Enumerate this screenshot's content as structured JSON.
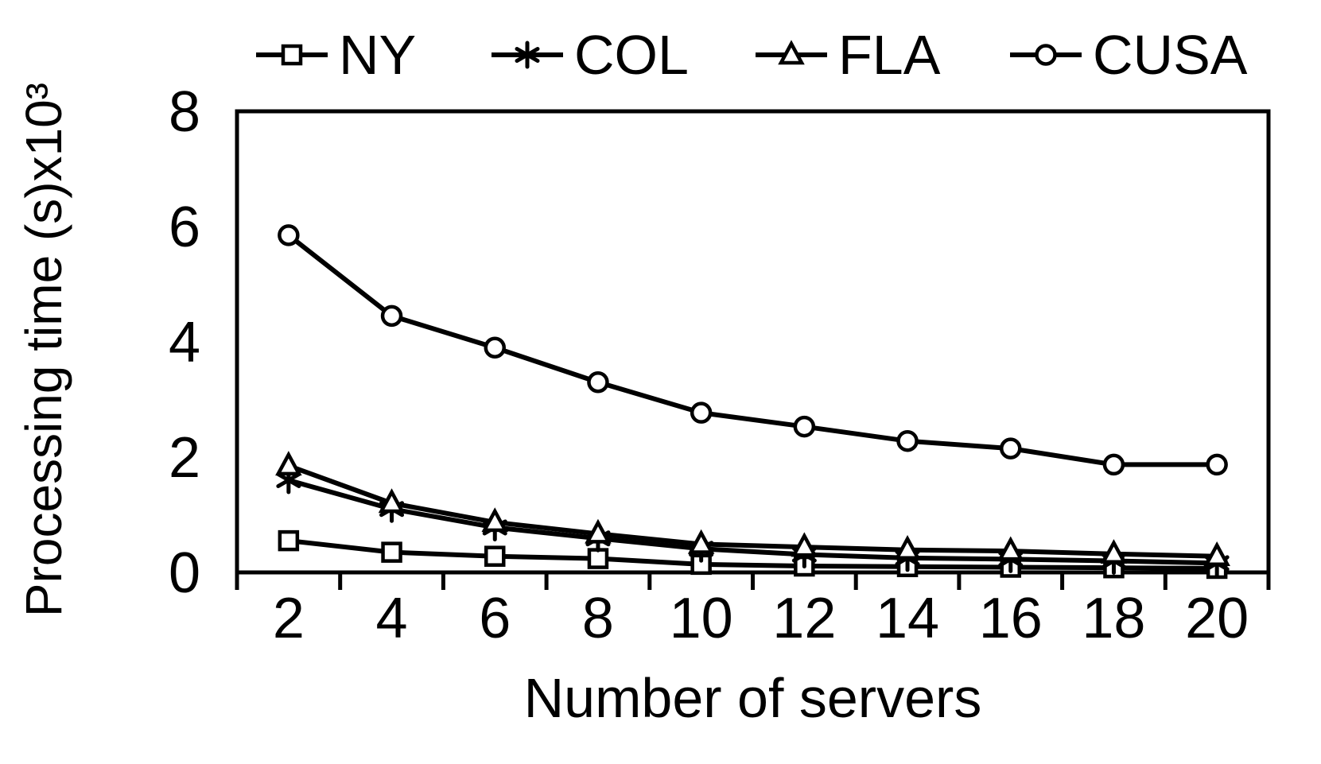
{
  "chart_data": {
    "type": "line",
    "title": "",
    "xlabel": "Number of servers",
    "ylabel": "Processing time (s)x10³",
    "x": [
      2,
      4,
      6,
      8,
      10,
      12,
      14,
      16,
      18,
      20
    ],
    "x_tick_labels": [
      "2",
      "4",
      "6",
      "8",
      "10",
      "12",
      "14",
      "16",
      "18",
      "20"
    ],
    "series": [
      {
        "name": "NY",
        "marker": "square",
        "values": [
          0.55,
          0.35,
          0.28,
          0.24,
          0.14,
          0.11,
          0.1,
          0.09,
          0.08,
          0.07
        ]
      },
      {
        "name": "COL",
        "marker": "asterisk",
        "values": [
          1.6,
          1.1,
          0.78,
          0.59,
          0.41,
          0.31,
          0.25,
          0.23,
          0.2,
          0.16
        ]
      },
      {
        "name": "FLA",
        "marker": "triangle",
        "values": [
          1.85,
          1.2,
          0.87,
          0.67,
          0.49,
          0.44,
          0.39,
          0.37,
          0.32,
          0.28
        ]
      },
      {
        "name": "CUSA",
        "marker": "circle",
        "values": [
          5.85,
          4.45,
          3.9,
          3.3,
          2.77,
          2.53,
          2.28,
          2.15,
          1.87,
          1.87
        ]
      }
    ],
    "ylim": [
      0,
      8
    ],
    "yticks": [
      0,
      2,
      4,
      6,
      8
    ],
    "ytick_labels": [
      "0",
      "2",
      "4",
      "6",
      "8"
    ],
    "legend_position": "top",
    "grid": false,
    "line_color": "#000000",
    "background": "#ffffff"
  }
}
